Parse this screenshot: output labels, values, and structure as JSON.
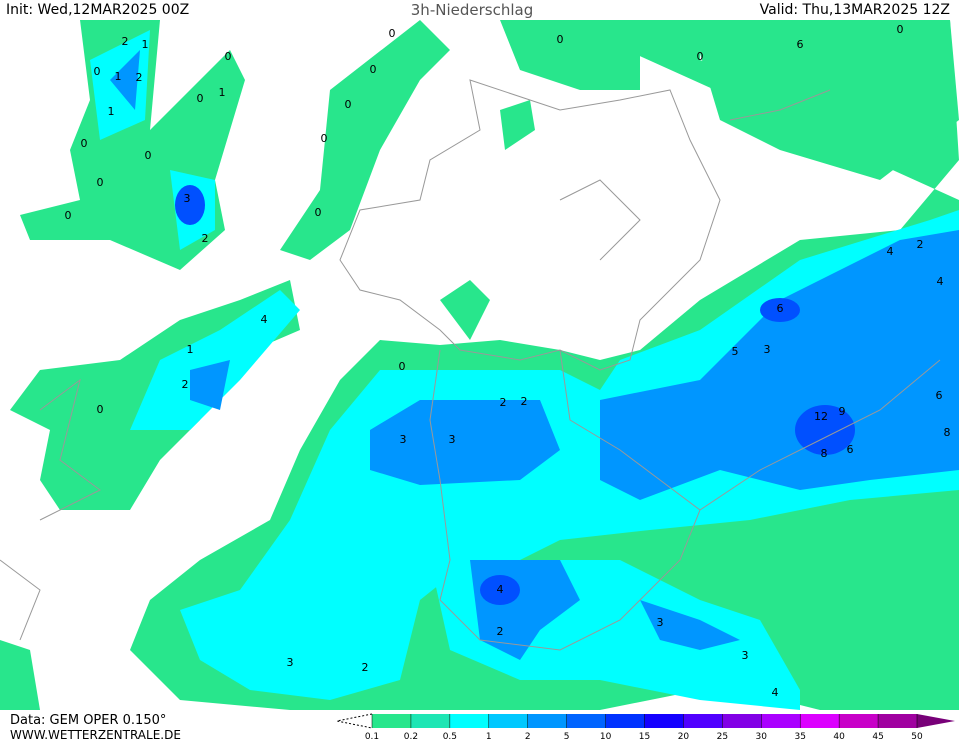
{
  "header": {
    "init": "Init: Wed,12MAR2025 00Z",
    "title": "3h-Niederschlag",
    "valid": "Valid: Thu,13MAR2025 12Z"
  },
  "footer": {
    "model": "Data: GEM OPER 0.150°",
    "site": "WWW.WETTERZENTRALE.DE"
  },
  "legend": {
    "ticks": [
      0.1,
      0.2,
      0.5,
      1,
      2,
      5,
      10,
      15,
      20,
      25,
      30,
      35,
      40,
      45,
      50
    ],
    "colors": [
      "#28e68c",
      "#1ee6b4",
      "#00ffff",
      "#00c8ff",
      "#0096ff",
      "#0064ff",
      "#0032ff",
      "#1400ff",
      "#5000ff",
      "#8200e6",
      "#aa00ff",
      "#dc00ff",
      "#c800c8",
      "#a000a0",
      "#780078"
    ]
  },
  "map": {
    "labels": [
      2,
      1,
      0,
      1,
      2,
      1,
      0,
      0,
      1,
      0,
      0,
      0,
      3,
      2,
      0,
      0,
      0,
      0,
      0,
      0,
      4,
      1,
      2,
      0,
      0,
      2,
      2,
      3,
      3,
      12,
      9,
      8,
      6,
      6,
      8,
      6,
      3,
      5,
      4,
      2,
      3,
      3,
      4,
      3,
      2,
      0,
      0,
      6,
      0,
      2,
      4,
      4
    ]
  }
}
